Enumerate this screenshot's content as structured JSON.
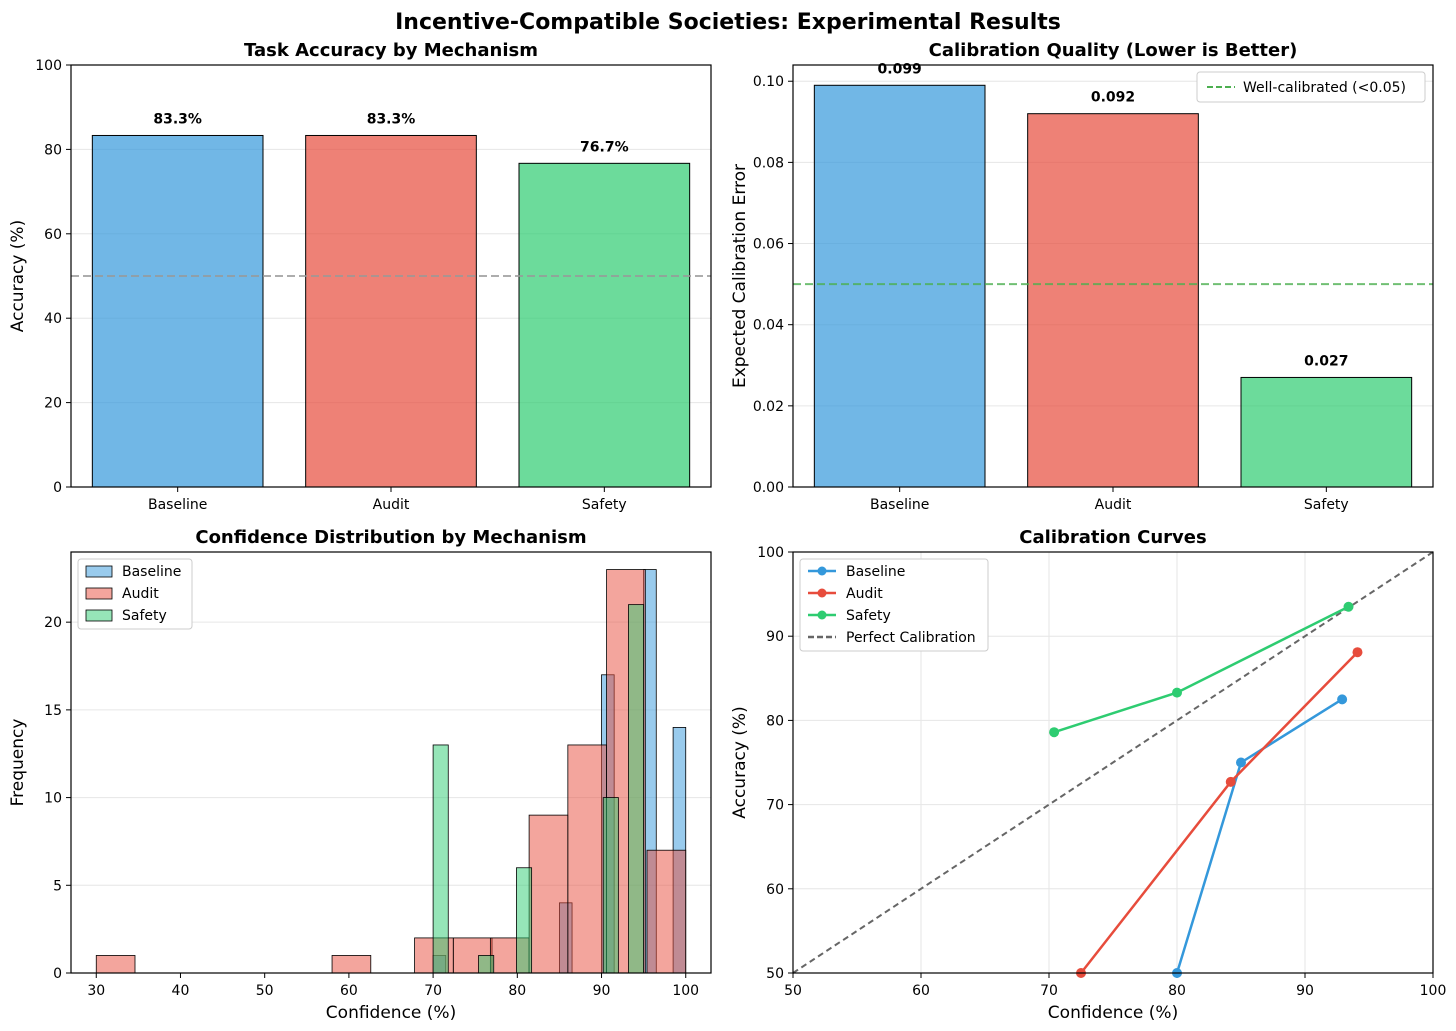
{
  "suptitle": "Incentive-Compatible Societies: Experimental Results",
  "colors": {
    "baseline": "#3498db",
    "audit": "#e74c3c",
    "safety": "#2ecc71",
    "reference": "#666666",
    "threshold": "#4caf50"
  },
  "chart_data": [
    {
      "type": "bar",
      "title": "Task Accuracy by Mechanism",
      "xlabel": "",
      "ylabel": "Accuracy (%)",
      "categories": [
        "Baseline",
        "Audit",
        "Safety"
      ],
      "values": [
        83.3,
        83.3,
        76.7
      ],
      "value_labels": [
        "83.3%",
        "83.3%",
        "76.7%"
      ],
      "ylim": [
        0,
        100
      ],
      "yticks": [
        0,
        20,
        40,
        60,
        80,
        100
      ],
      "reference_line": 50,
      "grid": "y"
    },
    {
      "type": "bar",
      "title": "Calibration Quality (Lower is Better)",
      "xlabel": "",
      "ylabel": "Expected Calibration Error",
      "categories": [
        "Baseline",
        "Audit",
        "Safety"
      ],
      "values": [
        0.099,
        0.092,
        0.027
      ],
      "value_labels": [
        "0.099",
        "0.092",
        "0.027"
      ],
      "ylim": [
        0,
        0.104
      ],
      "yticks": [
        0.0,
        0.02,
        0.04,
        0.06,
        0.08,
        0.1
      ],
      "ytick_labels": [
        "0.00",
        "0.02",
        "0.04",
        "0.06",
        "0.08",
        "0.10"
      ],
      "reference_line": 0.05,
      "reference_label": "Well-calibrated (<0.05)",
      "legend": "top-right",
      "grid": "y"
    },
    {
      "type": "histogram",
      "title": "Confidence Distribution by Mechanism",
      "xlabel": "Confidence (%)",
      "ylabel": "Frequency",
      "xlim": [
        27,
        103
      ],
      "ylim": [
        0,
        24
      ],
      "xticks": [
        30,
        40,
        50,
        60,
        70,
        80,
        90,
        100
      ],
      "yticks": [
        0,
        5,
        10,
        15,
        20
      ],
      "legend": "top-left",
      "grid": "y",
      "series": [
        {
          "name": "Baseline",
          "bins": [
            [
              70,
              71.5,
              1
            ],
            [
              85,
              86.5,
              4
            ],
            [
              90,
              91.5,
              17
            ],
            [
              95,
              96.5,
              23
            ],
            [
              98.5,
              100,
              14
            ]
          ]
        },
        {
          "name": "Audit",
          "bins": [
            [
              30,
              34.6,
              1
            ],
            [
              58,
              62.6,
              1
            ],
            [
              67.8,
              72.4,
              2
            ],
            [
              72.4,
              77,
              2
            ],
            [
              76.8,
              81.4,
              2
            ],
            [
              81.4,
              86,
              9
            ],
            [
              86,
              90.6,
              13
            ],
            [
              90.6,
              95.2,
              23
            ],
            [
              95.4,
              100,
              7
            ]
          ]
        },
        {
          "name": "Safety",
          "bins": [
            [
              70,
              71.8,
              13
            ],
            [
              75.4,
              77.2,
              1
            ],
            [
              79.9,
              81.7,
              6
            ],
            [
              90.2,
              92,
              10
            ],
            [
              93.2,
              95,
              21
            ]
          ]
        }
      ]
    },
    {
      "type": "line",
      "title": "Calibration Curves",
      "xlabel": "Confidence (%)",
      "ylabel": "Accuracy (%)",
      "xlim": [
        50,
        100
      ],
      "ylim": [
        50,
        100
      ],
      "xticks": [
        50,
        60,
        70,
        80,
        90,
        100
      ],
      "yticks": [
        50,
        60,
        70,
        80,
        90,
        100
      ],
      "legend": "top-left",
      "grid": "both",
      "series": [
        {
          "name": "Baseline",
          "x": [
            80.0,
            85.0,
            92.9
          ],
          "y": [
            50.0,
            75.0,
            82.5
          ]
        },
        {
          "name": "Audit",
          "x": [
            72.5,
            84.2,
            94.1
          ],
          "y": [
            50.0,
            72.7,
            88.1
          ]
        },
        {
          "name": "Safety",
          "x": [
            70.4,
            80.0,
            93.4
          ],
          "y": [
            78.6,
            83.3,
            93.5
          ]
        }
      ],
      "reference_line": {
        "name": "Perfect Calibration",
        "x": [
          50,
          100
        ],
        "y": [
          50,
          100
        ]
      }
    }
  ]
}
